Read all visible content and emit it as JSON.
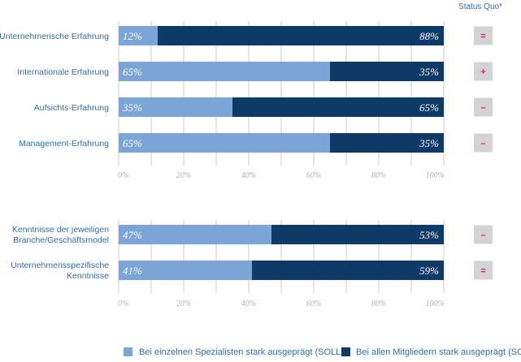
{
  "chart_data": [
    {
      "type": "bar",
      "stacked": true,
      "orientation": "horizontal",
      "categories": [
        "Unternehmerische Erfahrung",
        "Internationale Erfahrung",
        "Aufsichts-Erfahrung",
        "Management-Erfahrung"
      ],
      "series": [
        {
          "name": "Bei einzelnen Spezialisten stark  ausgeprägt (SOLL)",
          "values": [
            12,
            65,
            35,
            65
          ],
          "labels": [
            "12%",
            "65%",
            "35%",
            "65%"
          ]
        },
        {
          "name": "Bei allen Mitgliedern stark ausgeprägt (SOLL)",
          "values": [
            88,
            35,
            65,
            35
          ],
          "labels": [
            "88%",
            "35%",
            "65%",
            "35%"
          ]
        }
      ],
      "xlim": [
        0,
        100
      ],
      "ticks": [
        "0%",
        "20%",
        "40%",
        "60%",
        "80%",
        "100%"
      ],
      "grid": true,
      "status_quo": [
        "=",
        "+",
        "–",
        "–"
      ]
    },
    {
      "type": "bar",
      "stacked": true,
      "orientation": "horizontal",
      "categories": [
        [
          "Kenntnisse der jeweiligen",
          "Branche/Geschäftsmodel"
        ],
        [
          "Unternehmensspezifische",
          "Kenntnisse"
        ]
      ],
      "series": [
        {
          "name": "Bei einzelnen Spezialisten stark  ausgeprägt (SOLL)",
          "values": [
            47,
            41
          ],
          "labels": [
            "47%",
            "41%"
          ]
        },
        {
          "name": "Bei allen Mitgliedern stark ausgeprägt (SOLL)",
          "values": [
            53,
            59
          ],
          "labels": [
            "53%",
            "59%"
          ]
        }
      ],
      "xlim": [
        0,
        100
      ],
      "ticks": [
        "0%",
        "20%",
        "40%",
        "60%",
        "80%",
        "100%"
      ],
      "grid": true,
      "status_quo": [
        "–",
        "="
      ]
    }
  ],
  "status_quo_header": "Status Quo*",
  "legend": {
    "placement": "bottom",
    "items": [
      {
        "label": "Bei einzelnen Spezialisten stark  ausgeprägt (SOLL)",
        "color": "#7aa5d6"
      },
      {
        "label": "Bei allen Mitgliedern stark ausgeprägt (SOLL)",
        "color": "#0d3a66"
      }
    ]
  },
  "colors": {
    "light": "#7aa5d6",
    "dark": "#0d3a66",
    "label": "#2f6db5",
    "status_symbol": "#e0177a",
    "status_box": "#d3d3d3",
    "grid": "#c8c8c8",
    "tick": "#b3b3b3"
  }
}
